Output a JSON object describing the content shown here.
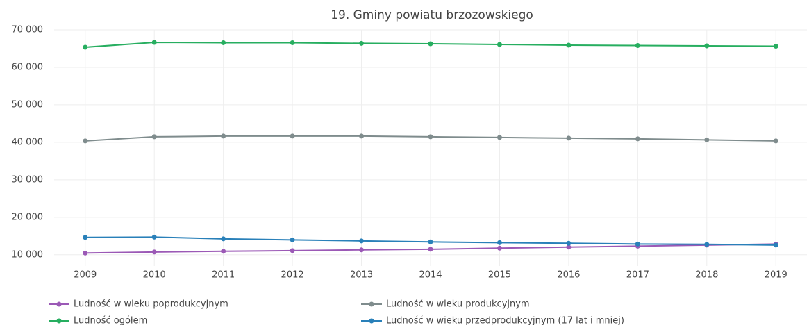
{
  "chart_data": {
    "type": "line",
    "title": "19. Gminy powiatu brzozowskiego",
    "x": [
      2009,
      2010,
      2011,
      2012,
      2013,
      2014,
      2015,
      2016,
      2017,
      2018,
      2019
    ],
    "xlim": [
      2008.55,
      2019.45
    ],
    "xticks": [
      2009,
      2010,
      2011,
      2012,
      2013,
      2014,
      2015,
      2016,
      2017,
      2018,
      2019
    ],
    "ylim": [
      7000,
      70000
    ],
    "yticks": [
      {
        "value": 10000,
        "label": "10 000"
      },
      {
        "value": 20000,
        "label": "20 000"
      },
      {
        "value": 30000,
        "label": "30 000"
      },
      {
        "value": 40000,
        "label": "40 000"
      },
      {
        "value": 50000,
        "label": "50 000"
      },
      {
        "value": 60000,
        "label": "60 000"
      },
      {
        "value": 70000,
        "label": "70 000"
      }
    ],
    "grid": true,
    "legend": "bottom",
    "series": [
      {
        "name": "Ludność w wieku poprodukcyjnym",
        "color": "#9b59b6",
        "values": [
          10460,
          10740,
          10930,
          11110,
          11300,
          11480,
          11760,
          12040,
          12310,
          12590,
          12870
        ]
      },
      {
        "name": "Ludność w wieku produkcyjnym",
        "color": "#7f8c8d",
        "values": [
          40370,
          41480,
          41670,
          41670,
          41670,
          41480,
          41300,
          41110,
          40930,
          40650,
          40370
        ]
      },
      {
        "name": "Ludność ogółem",
        "color": "#27ae60",
        "values": [
          65370,
          66670,
          66580,
          66580,
          66400,
          66300,
          66110,
          65930,
          65830,
          65740,
          65650
        ]
      },
      {
        "name": "Ludność w wieku przedprodukcyjnym (17 lat i mniej)",
        "color": "#2980b9",
        "values": [
          14630,
          14720,
          14260,
          13980,
          13700,
          13430,
          13240,
          13060,
          12870,
          12780,
          12590
        ]
      }
    ]
  }
}
